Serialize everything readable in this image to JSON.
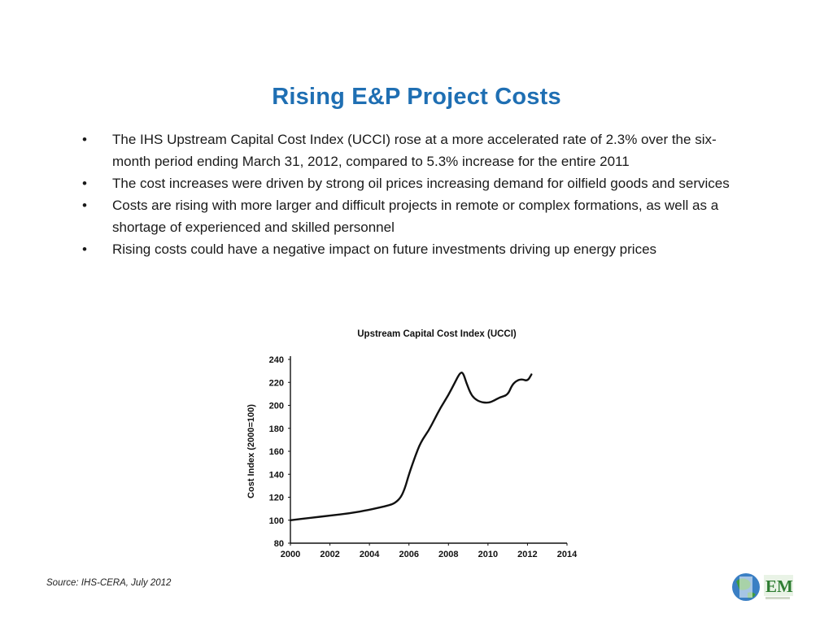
{
  "slide": {
    "title": "Rising E&P Project Costs",
    "bullets": [
      "The IHS Upstream Capital Cost Index (UCCI) rose at a more accelerated rate of 2.3% over the six-month period ending March 31, 2012, compared to 5.3% increase for the entire 2011",
      "The cost increases were driven by strong oil prices increasing demand for oilfield goods and services",
      "Costs are rising with more larger and difficult projects in remote or complex formations, as well as a shortage of experienced and skilled personnel",
      "Rising costs could have a negative impact on future investments driving up energy prices"
    ],
    "bullet_glyph": "•",
    "source": "Source: IHS-CERA, July 2012",
    "logo_text": "EM"
  },
  "colors": {
    "title": "#1f6fb3",
    "line": "#111111",
    "logo_green": "#2e7d32"
  },
  "chart_data": {
    "type": "line",
    "title": "Upstream Capital Cost Index (UCCI)",
    "xlabel": "",
    "ylabel": "Cost Index (2000=100)",
    "xlim": [
      2000,
      2014
    ],
    "ylim": [
      80,
      240
    ],
    "xticks": [
      2000,
      2002,
      2004,
      2006,
      2008,
      2010,
      2012,
      2014
    ],
    "yticks": [
      80,
      100,
      120,
      140,
      160,
      180,
      200,
      220,
      240
    ],
    "grid": false,
    "series": [
      {
        "x": [
          2000.0,
          2001.0,
          2002.0,
          2003.0,
          2004.0,
          2004.5,
          2005.0,
          2005.3,
          2005.6,
          2005.8,
          2006.0,
          2006.3,
          2006.6,
          2007.0,
          2007.3,
          2007.6,
          2008.0,
          2008.3,
          2008.6,
          2008.75,
          2008.9,
          2009.1,
          2009.3,
          2009.6,
          2010.0,
          2010.3,
          2010.6,
          2011.0,
          2011.2,
          2011.4,
          2011.7,
          2012.0,
          2012.2
        ],
        "values": [
          100,
          102,
          104,
          106,
          109,
          111,
          113,
          115,
          120,
          128,
          140,
          155,
          168,
          178,
          188,
          198,
          209,
          219,
          229,
          228,
          220,
          211,
          206,
          203,
          202,
          204,
          207,
          209,
          217,
          221,
          223,
          221,
          227
        ]
      }
    ]
  }
}
